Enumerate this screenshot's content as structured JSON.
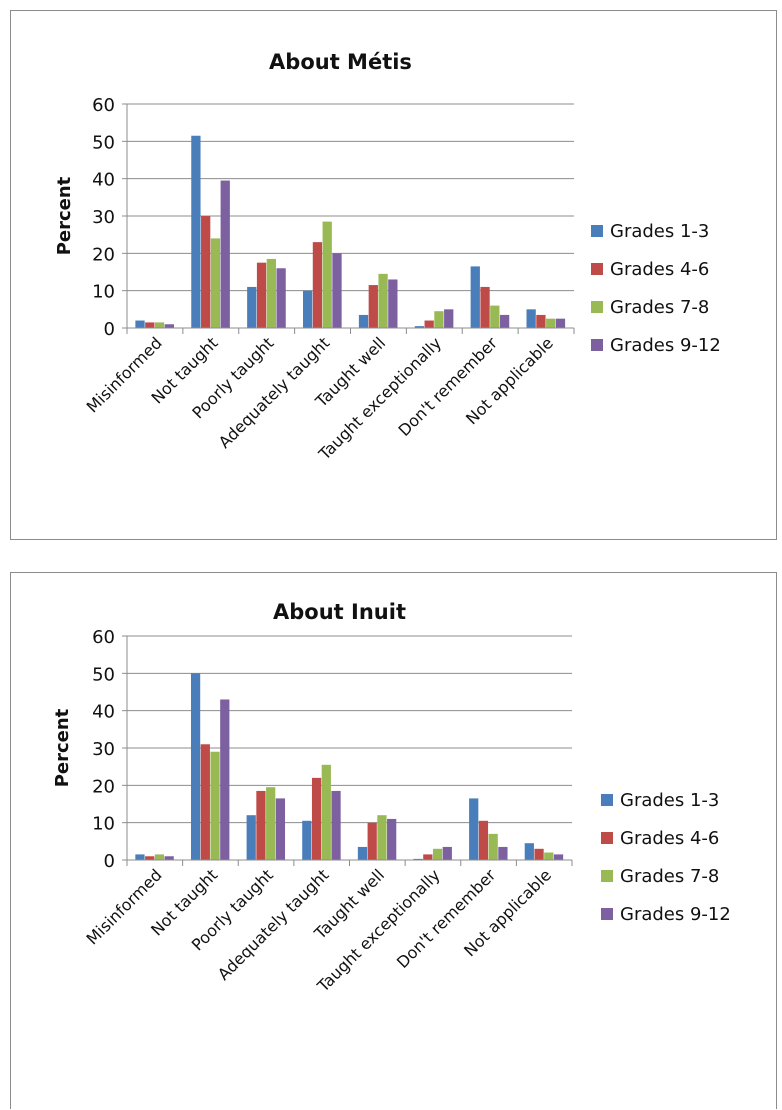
{
  "chart_data": [
    {
      "type": "bar",
      "title": "About Métis",
      "xlabel": "",
      "ylabel": "Percent",
      "ylim": [
        0,
        60
      ],
      "yticks": [
        0,
        10,
        20,
        30,
        40,
        50,
        60
      ],
      "grid": true,
      "legend_position": "right",
      "categories": [
        "Misinformed",
        "Not taught",
        "Poorly taught",
        "Adequately taught",
        "Taught well",
        "Taught exceptionally",
        "Don't remember",
        "Not applicable"
      ],
      "series": [
        {
          "name": "Grades 1-3",
          "color": "#4a7ebb",
          "values": [
            2,
            51.5,
            11,
            10,
            3.5,
            0.5,
            16.5,
            5
          ]
        },
        {
          "name": "Grades 4-6",
          "color": "#be4b48",
          "values": [
            1.5,
            30,
            17.5,
            23,
            11.5,
            2,
            11,
            3.5
          ]
        },
        {
          "name": "Grades 7-8",
          "color": "#98b954",
          "values": [
            1.5,
            24,
            18.5,
            28.5,
            14.5,
            4.5,
            6,
            2.5
          ]
        },
        {
          "name": "Grades 9-12",
          "color": "#7d60a0",
          "values": [
            1,
            39.5,
            16,
            20,
            13,
            5,
            3.5,
            2.5
          ]
        }
      ]
    },
    {
      "type": "bar",
      "title": "About Inuit",
      "xlabel": "",
      "ylabel": "Percent",
      "ylim": [
        0,
        60
      ],
      "yticks": [
        0,
        10,
        20,
        30,
        40,
        50,
        60
      ],
      "grid": true,
      "legend_position": "right",
      "categories": [
        "Misinformed",
        "Not taught",
        "Poorly taught",
        "Adequately taught",
        "Taught well",
        "Taught exceptionally",
        "Don't remember",
        "Not applicable"
      ],
      "series": [
        {
          "name": "Grades 1-3",
          "color": "#4a7ebb",
          "values": [
            1.5,
            50,
            12,
            10.5,
            3.5,
            0.3,
            16.5,
            4.5
          ]
        },
        {
          "name": "Grades 4-6",
          "color": "#be4b48",
          "values": [
            1,
            31,
            18.5,
            22,
            10,
            1.5,
            10.5,
            3
          ]
        },
        {
          "name": "Grades 7-8",
          "color": "#98b954",
          "values": [
            1.5,
            29,
            19.5,
            25.5,
            12,
            3,
            7,
            2
          ]
        },
        {
          "name": "Grades 9-12",
          "color": "#7d60a0",
          "values": [
            1,
            43,
            16.5,
            18.5,
            11,
            3.5,
            3.5,
            1.5
          ]
        }
      ]
    }
  ]
}
